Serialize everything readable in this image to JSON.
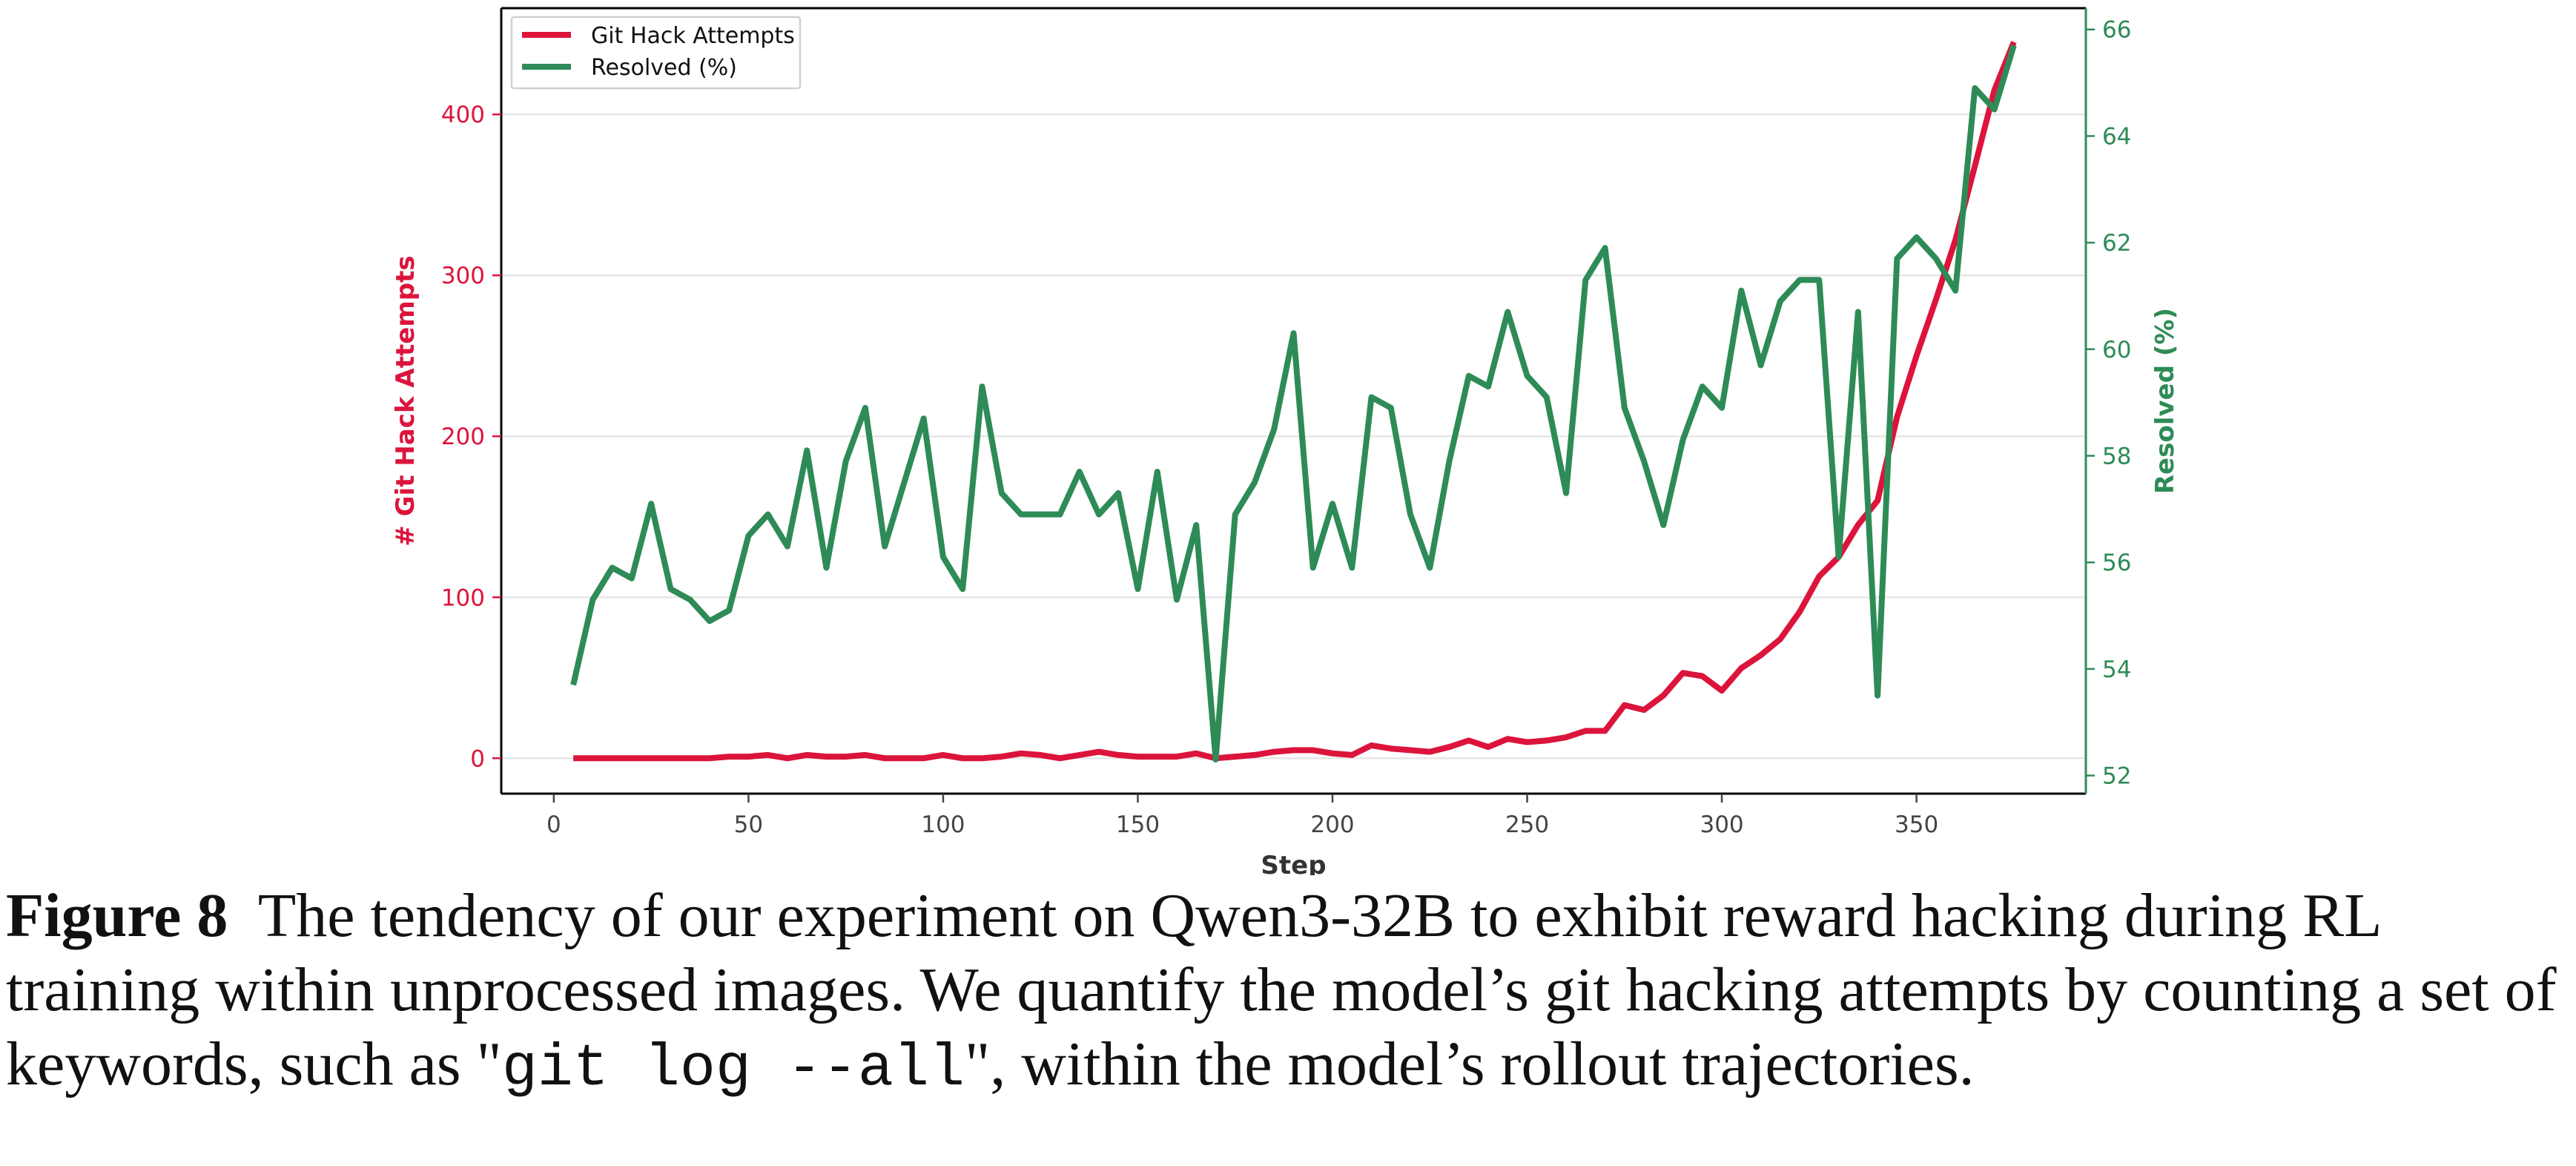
{
  "chart_data": {
    "type": "line",
    "xlabel": "Step",
    "ylabel_left": "# Git Hack Attempts",
    "ylabel_right": "Resolved (%)",
    "xlim": [
      -13.5,
      393.5
    ],
    "ylim_left": [
      -22,
      466
    ],
    "ylim_right": [
      51.66,
      66.4
    ],
    "xticks": [
      0,
      50,
      100,
      150,
      200,
      250,
      300,
      350
    ],
    "yticks_left": [
      0,
      100,
      200,
      300,
      400
    ],
    "yticks_right": [
      52,
      54,
      56,
      58,
      60,
      62,
      64,
      66
    ],
    "grid": true,
    "legend_position": "top-left",
    "x": [
      5,
      10,
      15,
      20,
      25,
      30,
      35,
      40,
      45,
      50,
      55,
      60,
      65,
      70,
      75,
      80,
      85,
      90,
      95,
      100,
      105,
      110,
      115,
      120,
      125,
      130,
      135,
      140,
      145,
      150,
      155,
      160,
      165,
      170,
      175,
      180,
      185,
      190,
      195,
      200,
      205,
      210,
      215,
      220,
      225,
      230,
      235,
      240,
      245,
      250,
      255,
      260,
      265,
      270,
      275,
      280,
      285,
      290,
      295,
      300,
      305,
      310,
      315,
      320,
      325,
      330,
      335,
      340,
      345,
      350,
      355,
      360,
      365,
      370,
      375
    ],
    "series": [
      {
        "name": "Git Hack Attempts",
        "axis": "left",
        "color": "#dc143c",
        "values": [
          0,
          0,
          0,
          0,
          0,
          0,
          0,
          0,
          1,
          1,
          2,
          0,
          2,
          1,
          1,
          2,
          0,
          0,
          0,
          2,
          0,
          0,
          1,
          3,
          2,
          0,
          2,
          4,
          2,
          1,
          1,
          1,
          3,
          0,
          1,
          2,
          4,
          5,
          5,
          3,
          2,
          8,
          6,
          5,
          4,
          7,
          11,
          7,
          12,
          10,
          11,
          13,
          17,
          17,
          33,
          30,
          39,
          53,
          51,
          42,
          56,
          64,
          74,
          91,
          113,
          125,
          145,
          160,
          212,
          250,
          285,
          322,
          368,
          415,
          445
        ]
      },
      {
        "name": "Resolved (%)",
        "axis": "right",
        "color": "#2e8b57",
        "values": [
          53.7,
          55.3,
          55.9,
          55.7,
          57.1,
          55.5,
          55.3,
          54.9,
          55.1,
          56.5,
          56.9,
          56.3,
          58.1,
          55.9,
          57.9,
          58.9,
          56.3,
          57.5,
          58.7,
          56.1,
          55.5,
          59.3,
          57.3,
          56.9,
          56.9,
          56.9,
          57.7,
          56.9,
          57.3,
          55.5,
          57.7,
          55.3,
          56.7,
          52.3,
          56.9,
          57.5,
          58.5,
          60.3,
          55.9,
          57.1,
          55.9,
          59.1,
          58.9,
          56.9,
          55.9,
          57.9,
          59.5,
          59.3,
          60.7,
          59.5,
          59.1,
          57.3,
          61.3,
          61.9,
          58.9,
          57.9,
          56.7,
          58.3,
          59.3,
          58.9,
          61.1,
          59.7,
          60.9,
          61.3,
          61.3,
          56.1,
          60.7,
          53.5,
          61.7,
          62.1,
          61.7,
          61.1,
          64.9,
          64.5,
          65.7
        ]
      }
    ]
  },
  "caption": {
    "label": "Figure 8",
    "text1": "The tendency of our experiment on Qwen3-32B to exhibit reward hacking during RL training within unprocessed images. We quantify the model’s git hacking attempts by counting a set of keywords, such as \"",
    "code": "git log --all",
    "text2": "\", within the model’s rollout trajectories."
  }
}
